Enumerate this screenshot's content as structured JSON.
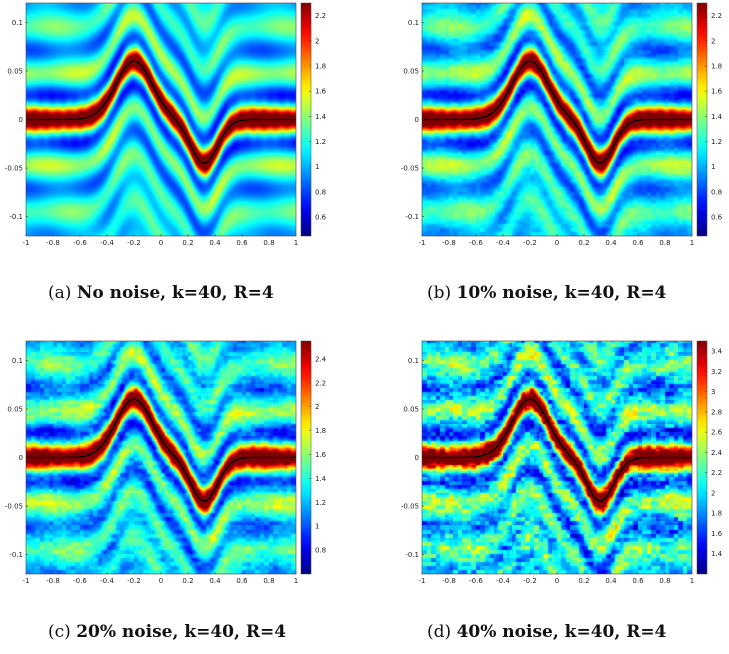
{
  "chart_data": [
    {
      "type": "heatmap",
      "caption_label": "(a)",
      "caption_text": "No noise, k=40, R=4",
      "xlim": [
        -1,
        1
      ],
      "ylim": [
        -0.12,
        0.12
      ],
      "xticks": [
        "-1",
        "-0.8",
        "-0.6",
        "-0.4",
        "-0.2",
        "0",
        "0.2",
        "0.4",
        "0.6",
        "0.8",
        "1"
      ],
      "yticks": [
        "0.1",
        "0.05",
        "0",
        "-0.05",
        "-0.1"
      ],
      "colorbar": {
        "min": 0.45,
        "max": 2.3,
        "ticks": [
          "2.2",
          "2",
          "1.8",
          "1.6",
          "1.4",
          "1.2",
          "1",
          "0.8",
          "0.6"
        ]
      },
      "curve_color": "#000000",
      "noise": 0
    },
    {
      "type": "heatmap",
      "caption_label": "(b)",
      "caption_text": "10% noise, k=40, R=4",
      "xlim": [
        -1,
        1
      ],
      "ylim": [
        -0.12,
        0.12
      ],
      "xticks": [
        "-1",
        "-0.8",
        "-0.6",
        "-0.4",
        "-0.2",
        "0",
        "0.2",
        "0.4",
        "0.6",
        "0.8",
        "1"
      ],
      "yticks": [
        "0.1",
        "0.05",
        "0",
        "-0.05",
        "-0.1"
      ],
      "colorbar": {
        "min": 0.45,
        "max": 2.3,
        "ticks": [
          "2.2",
          "2",
          "1.8",
          "1.6",
          "1.4",
          "1.2",
          "1",
          "0.8",
          "0.6"
        ]
      },
      "curve_color": "#000000",
      "noise": 0.1
    },
    {
      "type": "heatmap",
      "caption_label": "(c)",
      "caption_text": "20% noise, k=40, R=4",
      "xlim": [
        -1,
        1
      ],
      "ylim": [
        -0.12,
        0.12
      ],
      "xticks": [
        "-1",
        "-0.8",
        "-0.6",
        "-0.4",
        "-0.2",
        "0",
        "0.2",
        "0.4",
        "0.6",
        "0.8",
        "1"
      ],
      "yticks": [
        "0.1",
        "0.05",
        "0",
        "-0.05",
        "-0.1"
      ],
      "colorbar": {
        "min": 0.6,
        "max": 2.55,
        "ticks": [
          "2.4",
          "2.2",
          "2",
          "1.8",
          "1.6",
          "1.4",
          "1.2",
          "1",
          "0.8"
        ]
      },
      "curve_color": "#000000",
      "noise": 0.2
    },
    {
      "type": "heatmap",
      "caption_label": "(d)",
      "caption_text": "40% noise, k=40, R=4",
      "xlim": [
        -1,
        1
      ],
      "ylim": [
        -0.12,
        0.12
      ],
      "xticks": [
        "-1",
        "-0.8",
        "-0.6",
        "-0.4",
        "-0.2",
        "0",
        "0.2",
        "0.4",
        "0.6",
        "0.8",
        "1"
      ],
      "yticks": [
        "0.1",
        "0.05",
        "0",
        "-0.05",
        "-0.1"
      ],
      "colorbar": {
        "min": 1.2,
        "max": 3.5,
        "ticks": [
          "3.4",
          "3.2",
          "3",
          "2.8",
          "2.6",
          "2.4",
          "2.2",
          "2",
          "1.8",
          "1.6",
          "1.4"
        ]
      },
      "curve_color": "#000000",
      "noise": 0.4
    }
  ]
}
